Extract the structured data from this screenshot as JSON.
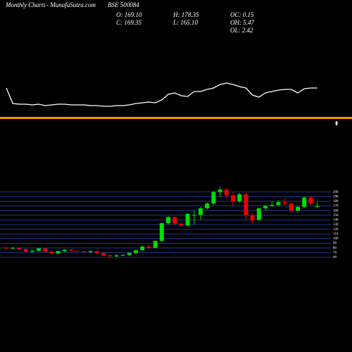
{
  "header": {
    "site": "Monthly Charts",
    "source": "- MunafaSutra.com",
    "symbol": "BSE 500084",
    "stats": [
      "O: 169.10",
      "C: 169.35",
      "H: 178.35",
      "L: 165.10",
      "OC: 0.15",
      "OH: 5.47",
      "OL: 2.42"
    ]
  },
  "chart_data": {
    "type": "candlestick",
    "up_color": "#00dd00",
    "down_color": "#ee0000",
    "grid": true,
    "ylim": [
      50,
      210
    ],
    "yticks": [
      60,
      70,
      80,
      90,
      100,
      110,
      120,
      130,
      140,
      150,
      160,
      170,
      180,
      190,
      200
    ],
    "open": [
      80,
      79,
      80,
      77,
      72,
      74,
      79,
      72,
      68,
      73,
      76,
      74,
      73,
      71,
      73,
      69,
      64,
      62,
      64,
      65,
      69,
      75,
      83,
      80,
      95,
      133,
      146,
      132,
      128,
      150,
      151,
      165,
      175,
      200,
      205,
      193,
      180,
      195,
      150,
      140,
      165,
      170,
      172,
      178,
      175,
      160,
      168,
      188,
      169.1
    ],
    "high": [
      82,
      82,
      82,
      79,
      76,
      80,
      80,
      74,
      74,
      78,
      78,
      75,
      74,
      75,
      74,
      71,
      66,
      66,
      66,
      70,
      76,
      84,
      86,
      96,
      135,
      148,
      147,
      136,
      154,
      160,
      168,
      178,
      202,
      210,
      208,
      200,
      198,
      199,
      156,
      166,
      172,
      180,
      182,
      186,
      178,
      170,
      190,
      192,
      178.35
    ],
    "low": [
      77,
      76,
      76,
      70,
      70,
      72,
      70,
      66,
      67,
      72,
      72,
      72,
      70,
      70,
      68,
      62,
      60,
      60,
      62,
      64,
      68,
      74,
      78,
      79,
      94,
      130,
      128,
      125,
      126,
      130,
      140,
      162,
      172,
      190,
      185,
      170,
      176,
      140,
      132,
      138,
      160,
      168,
      170,
      172,
      155,
      158,
      165,
      172,
      165.1
    ],
    "close": [
      79,
      80,
      77,
      72,
      74,
      79,
      72,
      68,
      73,
      76,
      74,
      73,
      71,
      73,
      69,
      64,
      62,
      64,
      65,
      69,
      75,
      83,
      80,
      95,
      133,
      146,
      132,
      128,
      153,
      151,
      165,
      175,
      200,
      205,
      193,
      180,
      195,
      150,
      140,
      165,
      170,
      172,
      178,
      175,
      160,
      168,
      188,
      175,
      169.35
    ],
    "overlay": {
      "color": "#ffffff",
      "ylim": [
        0,
        50
      ],
      "values": [
        35,
        13,
        12,
        12,
        11,
        12,
        10,
        11,
        12,
        12,
        11,
        11,
        11,
        10,
        10,
        9,
        9,
        10,
        10,
        11,
        13,
        14,
        15,
        14,
        18,
        26,
        28,
        24,
        23,
        30,
        30,
        33,
        35,
        40,
        42,
        40,
        37,
        35,
        25,
        22,
        28,
        30,
        32,
        33,
        33,
        28,
        34,
        35,
        35
      ]
    }
  }
}
